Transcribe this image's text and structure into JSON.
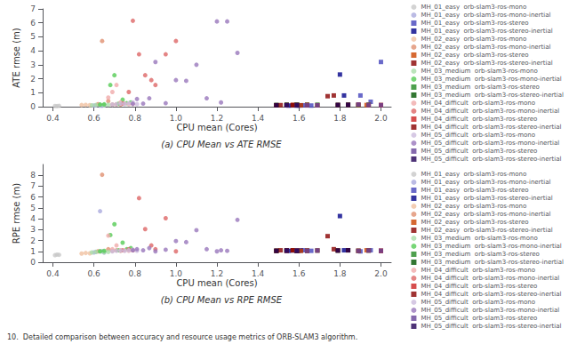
{
  "chart_data": [
    {
      "type": "scatter",
      "title": "(a) CPU Mean vs ATE RMSE",
      "xlabel": "CPU mean (Cores)",
      "ylabel": "ATE rmse (m)",
      "xlim": [
        0.35,
        2.05
      ],
      "ylim": [
        0,
        7.0
      ],
      "xticks": [
        0.4,
        0.6,
        0.8,
        {
          "value": 1.0,
          "label": "1.0"
        },
        1.2,
        1.4,
        1.6,
        1.8,
        {
          "value": 2.0,
          "label": "2.0"
        }
      ],
      "yticks": [
        0,
        1,
        2,
        3,
        4,
        5,
        6,
        7
      ],
      "grid": false,
      "legend": "upper right",
      "series": [
        {
          "name": "MH_01_easy  orb-slam3-ros-mono",
          "color": "#c8c8c8",
          "marker": "circle",
          "x": [
            0.41,
            0.42,
            0.43
          ],
          "values": [
            0.05,
            0.04,
            0.06
          ]
        },
        {
          "name": "MH_01_easy  orb-slam3-ros-mono-inertial",
          "color": "#aaaadd",
          "marker": "circle",
          "x": [
            0.6,
            0.61,
            0.63,
            0.64,
            0.65
          ],
          "values": [
            0.08,
            0.09,
            0.08,
            0.07,
            0.09
          ]
        },
        {
          "name": "MH_01_easy  orb-slam3-ros-stereo",
          "color": "#4444bb",
          "marker": "square",
          "x": [
            1.6,
            1.62,
            1.64,
            1.66,
            1.9,
            1.95,
            2.0
          ],
          "values": [
            0.08,
            0.1,
            0.09,
            0.08,
            0.8,
            0.35,
            3.2
          ]
        },
        {
          "name": "MH_01_easy  orb-slam3-ros-stereo-inertial",
          "color": "#000088",
          "marker": "square",
          "x": [
            1.55,
            1.57,
            1.59,
            1.61,
            1.8,
            1.82
          ],
          "values": [
            0.08,
            0.09,
            0.08,
            0.09,
            2.3,
            0.8
          ]
        },
        {
          "name": "MH_02_easy  orb-slam3-ros-mono",
          "color": "#f0c0a0",
          "marker": "circle",
          "x": [
            0.54,
            0.56,
            0.58
          ],
          "values": [
            0.12,
            0.13,
            0.11
          ]
        },
        {
          "name": "MH_02_easy  orb-slam3-ros-mono-inertial",
          "color": "#e09070",
          "marker": "circle",
          "x": [
            0.62,
            0.64,
            0.67,
            0.69,
            0.71,
            0.73
          ],
          "values": [
            0.18,
            4.7,
            0.4,
            0.15,
            0.17,
            0.16
          ]
        },
        {
          "name": "MH_02_easy  orb-slam3-ros-stereo",
          "color": "#cc4400",
          "marker": "square",
          "x": [
            1.54,
            1.57,
            1.59,
            1.61,
            1.64,
            1.89,
            1.93,
            2.0
          ],
          "values": [
            0.1,
            0.12,
            0.11,
            0.1,
            0.15,
            0.1,
            0.12,
            0.11
          ]
        },
        {
          "name": "MH_02_easy  orb-slam3-ros-stereo-inertial",
          "color": "#880000",
          "marker": "square",
          "x": [
            1.49,
            1.51,
            1.54,
            1.57,
            1.74,
            1.77
          ],
          "values": [
            0.1,
            0.11,
            0.1,
            0.12,
            0.75,
            0.8
          ]
        },
        {
          "name": "MH_03_medium  orb-slam3-ros-mono",
          "color": "#aaddaa",
          "marker": "circle",
          "x": [
            0.59,
            0.61,
            0.63,
            0.65,
            0.67
          ],
          "values": [
            0.1,
            0.12,
            0.13,
            0.11,
            0.14
          ]
        },
        {
          "name": "MH_03_medium  orb-slam3-ros-mono-inertial",
          "color": "#55cc55",
          "marker": "circle",
          "x": [
            0.63,
            0.65,
            0.68,
            0.7,
            0.72,
            0.74,
            0.76,
            0.78
          ],
          "values": [
            0.15,
            0.17,
            1.55,
            2.25,
            0.21,
            0.5,
            0.25,
            0.3
          ]
        },
        {
          "name": "MH_03_medium  orb-slam3-ros-stereo",
          "color": "#228822",
          "marker": "square",
          "x": [
            1.54,
            1.59,
            1.64,
            1.69,
            1.89,
            1.94
          ],
          "values": [
            0.12,
            0.15,
            0.13,
            0.14,
            0.12,
            0.15
          ]
        },
        {
          "name": "MH_03_medium  orb-slam3-ros-stereo-inertial",
          "color": "#005500",
          "marker": "square",
          "x": [
            1.49,
            1.54,
            1.59,
            1.79,
            1.84
          ],
          "values": [
            0.12,
            0.13,
            0.14,
            0.12,
            0.14
          ]
        },
        {
          "name": "MH_04_difficult  orb-slam3-ros-mono",
          "color": "#f0aaaa",
          "marker": "circle",
          "x": [
            0.67,
            0.69,
            0.71,
            0.73,
            0.75,
            0.77,
            0.79
          ],
          "values": [
            0.65,
            1.05,
            1.55,
            0.3,
            0.22,
            0.18,
            0.2
          ]
        },
        {
          "name": "MH_04_difficult  orb-slam3-ros-mono-inertial",
          "color": "#dd6666",
          "marker": "circle",
          "x": [
            0.74,
            0.77,
            0.79,
            0.82,
            0.85,
            0.88,
            0.9,
            0.95,
            1.0
          ],
          "values": [
            0.22,
            1.05,
            6.15,
            3.75,
            2.25,
            1.9,
            1.55,
            3.75,
            4.7
          ]
        },
        {
          "name": "MH_04_difficult  orb-slam3-ros-stereo",
          "color": "#cc2222",
          "marker": "square",
          "x": [
            1.54,
            1.59,
            1.64,
            1.69,
            1.89,
            1.94,
            2.0
          ],
          "values": [
            0.1,
            0.12,
            0.11,
            0.1,
            0.15,
            0.12,
            0.11
          ]
        },
        {
          "name": "MH_04_difficult  orb-slam3-ros-stereo-inertial",
          "color": "#880000",
          "marker": "square",
          "x": [
            1.49,
            1.54,
            1.59,
            1.79,
            1.84
          ],
          "values": [
            0.1,
            0.11,
            0.1,
            0.12,
            0.13
          ]
        },
        {
          "name": "MH_05_difficult  orb-slam3-ros-mono",
          "color": "#ccbbdd",
          "marker": "circle",
          "x": [
            0.69,
            0.71,
            0.73,
            0.75,
            0.77,
            0.79,
            0.81
          ],
          "values": [
            0.15,
            0.18,
            0.22,
            0.2,
            0.25,
            0.3,
            0.18
          ]
        },
        {
          "name": "MH_05_difficult  orb-slam3-ros-mono-inertial",
          "color": "#9977bb",
          "marker": "circle",
          "x": [
            0.79,
            0.81,
            0.84,
            0.87,
            0.9,
            0.95,
            1.0,
            1.05,
            1.1,
            1.15,
            1.2,
            1.22,
            1.25,
            1.3
          ],
          "values": [
            0.2,
            0.55,
            0.22,
            0.6,
            3.2,
            0.25,
            1.9,
            1.85,
            3.0,
            0.6,
            6.1,
            0.3,
            6.1,
            3.85
          ]
        },
        {
          "name": "MH_05_difficult  orb-slam3-ros-stereo",
          "color": "#664499",
          "marker": "square",
          "x": [
            1.54,
            1.59,
            1.64,
            1.69,
            1.89,
            1.94,
            2.0
          ],
          "values": [
            0.1,
            0.12,
            0.11,
            0.1,
            0.15,
            0.12,
            0.11
          ]
        },
        {
          "name": "MH_05_difficult  orb-slam3-ros-stereo-inertial",
          "color": "#220055",
          "marker": "square",
          "x": [
            1.49,
            1.54,
            1.59,
            1.79,
            1.84
          ],
          "values": [
            0.1,
            0.11,
            0.1,
            0.12,
            0.13
          ]
        }
      ]
    },
    {
      "type": "scatter",
      "title": "(b) CPU Mean vs RPE RMSE",
      "xlabel": "CPU mean (Cores)",
      "ylabel": "RPE rmse (m)",
      "xlim": [
        0.35,
        2.05
      ],
      "ylim": [
        0,
        9.0
      ],
      "xticks": [
        0.4,
        0.6,
        0.8,
        {
          "value": 1.0,
          "label": "1.0"
        },
        1.2,
        1.4,
        1.6,
        1.8,
        {
          "value": 2.0,
          "label": "2.0"
        }
      ],
      "yticks": [
        0,
        1,
        2,
        3,
        4,
        5,
        6,
        7,
        8
      ],
      "grid": false,
      "legend": "upper right",
      "annotations": [
        "10.  Detailed comparison between accuracy and resource usage metrics of ORB-SLAM3 algorithm."
      ],
      "series": [
        {
          "name": "MH_01_easy  orb-slam3-ros-mono",
          "color": "#c8c8c8",
          "marker": "circle",
          "x": [
            0.41,
            0.42,
            0.43
          ],
          "values": [
            0.65,
            0.7,
            0.68
          ]
        },
        {
          "name": "MH_01_easy  orb-slam3-ros-mono-inertial",
          "color": "#aaaadd",
          "marker": "circle",
          "x": [
            0.6,
            0.61,
            0.63,
            0.64,
            0.65
          ],
          "values": [
            0.9,
            0.95,
            4.7,
            1.0,
            0.9
          ]
        },
        {
          "name": "MH_01_easy  orb-slam3-ros-stereo",
          "color": "#4444bb",
          "marker": "square",
          "x": [
            1.6,
            1.62,
            1.64,
            1.66,
            1.9,
            1.95,
            2.0
          ],
          "values": [
            1.05,
            1.1,
            1.08,
            1.05,
            1.0,
            1.1,
            1.05
          ]
        },
        {
          "name": "MH_01_easy  orb-slam3-ros-stereo-inertial",
          "color": "#000088",
          "marker": "square",
          "x": [
            1.55,
            1.57,
            1.59,
            1.61,
            1.8,
            1.82
          ],
          "values": [
            1.05,
            1.08,
            1.05,
            1.08,
            4.25,
            1.1
          ]
        },
        {
          "name": "MH_02_easy  orb-slam3-ros-mono",
          "color": "#f0c0a0",
          "marker": "circle",
          "x": [
            0.54,
            0.56,
            0.58
          ],
          "values": [
            0.8,
            0.85,
            0.82
          ]
        },
        {
          "name": "MH_02_easy  orb-slam3-ros-mono-inertial",
          "color": "#e09070",
          "marker": "circle",
          "x": [
            0.62,
            0.64,
            0.67,
            0.69,
            0.71,
            0.73
          ],
          "values": [
            1.0,
            8.05,
            1.2,
            1.05,
            1.1,
            1.05
          ]
        },
        {
          "name": "MH_02_easy  orb-slam3-ros-stereo",
          "color": "#cc4400",
          "marker": "square",
          "x": [
            1.54,
            1.57,
            1.59,
            1.61,
            1.64,
            1.89,
            1.93,
            2.0
          ],
          "values": [
            1.05,
            1.1,
            1.08,
            1.05,
            1.08,
            1.05,
            1.1,
            1.05
          ]
        },
        {
          "name": "MH_02_easy  orb-slam3-ros-stereo-inertial",
          "color": "#880000",
          "marker": "square",
          "x": [
            1.49,
            1.51,
            1.54,
            1.57,
            1.74,
            1.77
          ],
          "values": [
            1.05,
            1.1,
            1.05,
            1.1,
            2.4,
            1.2
          ]
        },
        {
          "name": "MH_03_medium  orb-slam3-ros-mono",
          "color": "#aaddaa",
          "marker": "circle",
          "x": [
            0.59,
            0.61,
            0.63,
            0.65,
            0.67
          ],
          "values": [
            0.9,
            0.95,
            1.0,
            0.92,
            0.95
          ]
        },
        {
          "name": "MH_03_medium  orb-slam3-ros-mono-inertial",
          "color": "#55cc55",
          "marker": "circle",
          "x": [
            0.63,
            0.65,
            0.68,
            0.7,
            0.72,
            0.74,
            0.76,
            0.78
          ],
          "values": [
            1.0,
            1.05,
            2.5,
            3.5,
            1.1,
            1.8,
            1.2,
            1.3
          ]
        },
        {
          "name": "MH_03_medium  orb-slam3-ros-stereo",
          "color": "#228822",
          "marker": "square",
          "x": [
            1.54,
            1.59,
            1.64,
            1.69,
            1.89,
            1.94
          ],
          "values": [
            1.05,
            1.08,
            1.05,
            1.08,
            1.05,
            1.08
          ]
        },
        {
          "name": "MH_03_medium  orb-slam3-ros-stereo-inertial",
          "color": "#005500",
          "marker": "square",
          "x": [
            1.49,
            1.54,
            1.59,
            1.79,
            1.84
          ],
          "values": [
            1.05,
            1.08,
            1.05,
            1.08,
            1.1
          ]
        },
        {
          "name": "MH_04_difficult  orb-slam3-ros-mono",
          "color": "#f0aaaa",
          "marker": "circle",
          "x": [
            0.67,
            0.69,
            0.71,
            0.73,
            0.75,
            0.77,
            0.79
          ],
          "values": [
            2.45,
            1.2,
            1.55,
            1.1,
            1.08,
            1.05,
            1.1
          ]
        },
        {
          "name": "MH_04_difficult  orb-slam3-ros-mono-inertial",
          "color": "#dd6666",
          "marker": "circle",
          "x": [
            0.74,
            0.77,
            0.79,
            0.82,
            0.85,
            0.88,
            0.9,
            0.95,
            1.0
          ],
          "values": [
            1.1,
            1.2,
            1.1,
            5.9,
            3.05,
            1.55,
            1.2,
            4.05,
            1.0
          ]
        },
        {
          "name": "MH_04_difficult  orb-slam3-ros-stereo",
          "color": "#cc2222",
          "marker": "square",
          "x": [
            1.54,
            1.59,
            1.64,
            1.69,
            1.89,
            1.94,
            2.0
          ],
          "values": [
            1.05,
            1.08,
            1.05,
            1.08,
            1.05,
            1.08,
            1.05
          ]
        },
        {
          "name": "MH_04_difficult  orb-slam3-ros-stereo-inertial",
          "color": "#880000",
          "marker": "square",
          "x": [
            1.49,
            1.54,
            1.59,
            1.79,
            1.84
          ],
          "values": [
            1.05,
            1.08,
            1.05,
            1.08,
            1.1
          ]
        },
        {
          "name": "MH_05_difficult  orb-slam3-ros-mono",
          "color": "#ccbbdd",
          "marker": "circle",
          "x": [
            0.69,
            0.71,
            0.73,
            0.75,
            0.77,
            0.79,
            0.81
          ],
          "values": [
            1.0,
            1.05,
            1.08,
            1.05,
            1.1,
            1.15,
            1.05
          ]
        },
        {
          "name": "MH_05_difficult  orb-slam3-ros-mono-inertial",
          "color": "#9977bb",
          "marker": "circle",
          "x": [
            0.79,
            0.81,
            0.84,
            0.87,
            0.9,
            0.95,
            1.0,
            1.05,
            1.1,
            1.15,
            1.2,
            1.22,
            1.25,
            1.3
          ],
          "values": [
            1.1,
            1.2,
            1.1,
            1.3,
            1.0,
            1.15,
            1.95,
            1.85,
            2.95,
            1.2,
            1.0,
            1.1,
            1.05,
            3.9
          ]
        },
        {
          "name": "MH_05_difficult  orb-slam3-ros-stereo",
          "color": "#664499",
          "marker": "square",
          "x": [
            1.54,
            1.59,
            1.64,
            1.69,
            1.89,
            1.94,
            2.0
          ],
          "values": [
            1.05,
            1.08,
            1.05,
            1.08,
            1.05,
            1.08,
            1.05
          ]
        },
        {
          "name": "MH_05_difficult  orb-slam3-ros-stereo-inertial",
          "color": "#220055",
          "marker": "square",
          "x": [
            1.49,
            1.54,
            1.59,
            1.79,
            1.84
          ],
          "values": [
            1.05,
            1.08,
            1.05,
            1.08,
            1.1
          ]
        }
      ]
    }
  ]
}
